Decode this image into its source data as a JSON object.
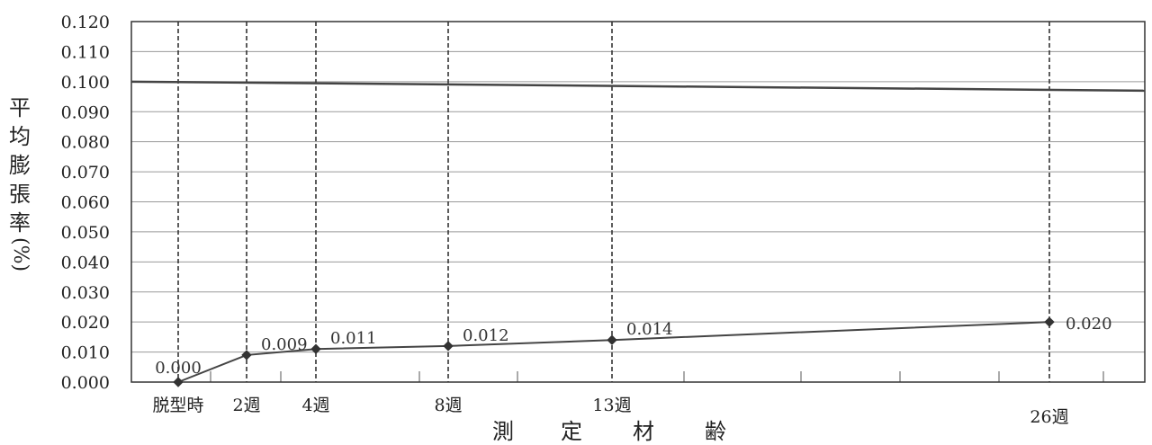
{
  "chart_data": {
    "type": "line",
    "ylabel": "平均膨張率(%)",
    "ylabel_chars": [
      "平",
      "均",
      "膨",
      "張",
      "率",
      "(%)"
    ],
    "xlabel": "測定材齢",
    "xlabel_chars": [
      "測",
      "定",
      "材",
      "齢"
    ],
    "ylim": [
      0,
      0.12
    ],
    "ytick_labels": [
      "0.000",
      "0.010",
      "0.020",
      "0.030",
      "0.040",
      "0.050",
      "0.060",
      "0.070",
      "0.080",
      "0.090",
      "0.100",
      "0.110",
      "0.120"
    ],
    "grid": true,
    "limit_line": 0.1,
    "series": [
      {
        "x": [
          "脱型時",
          "2週",
          "4週",
          "8週",
          "13週",
          "26週"
        ],
        "x_weeks": [
          0,
          2,
          4,
          8,
          13,
          26
        ],
        "values": [
          0.0,
          0.009,
          0.011,
          0.012,
          0.014,
          0.02
        ],
        "labels": [
          "0.000",
          "0.009",
          "0.011",
          "0.012",
          "0.014",
          "0.020"
        ]
      }
    ]
  }
}
